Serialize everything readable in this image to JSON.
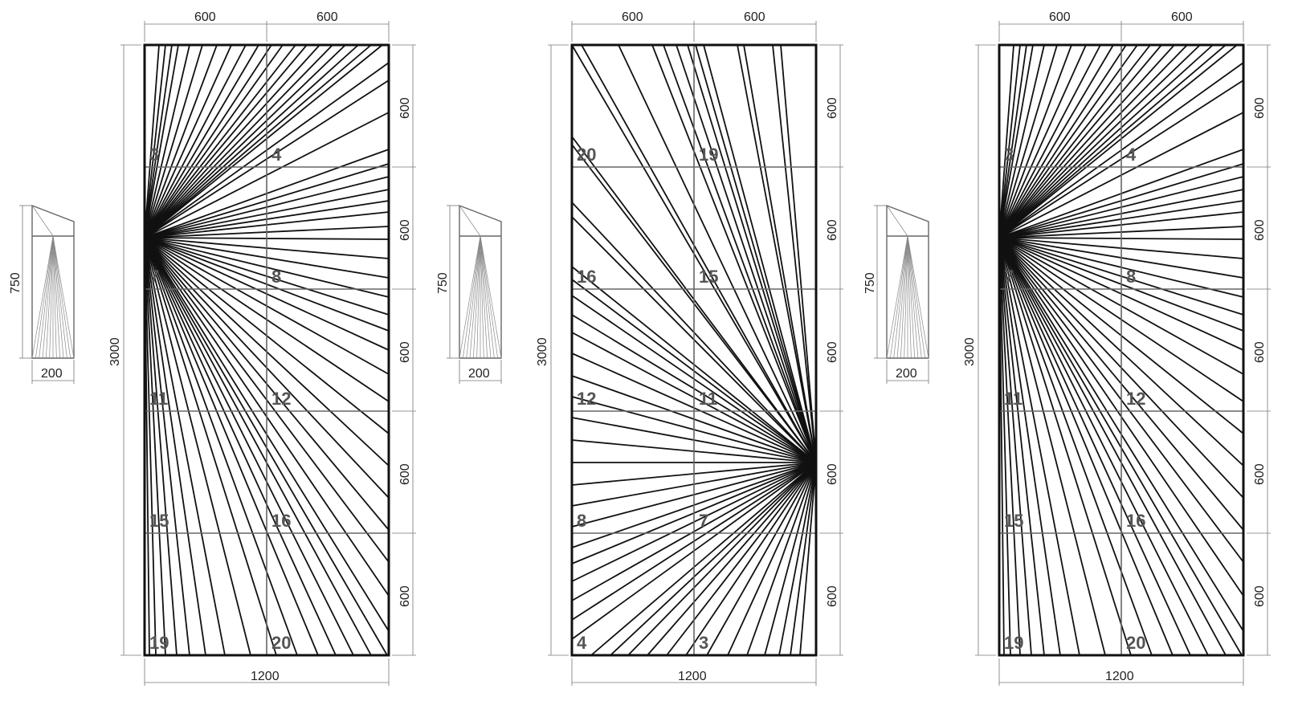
{
  "panels": [
    {
      "id": "panel-1",
      "focal": "left",
      "column_widths": [
        "600",
        "600"
      ],
      "total_width": "1200",
      "total_height": "3000",
      "row_heights": [
        "600",
        "600",
        "600",
        "600",
        "600"
      ],
      "cell_labels": [
        [
          "3",
          "4"
        ],
        [
          "7",
          "8"
        ],
        [
          "11",
          "12"
        ],
        [
          "15",
          "16"
        ],
        [
          "19",
          "20"
        ]
      ],
      "section": {
        "height": "750",
        "width": "200"
      }
    },
    {
      "id": "panel-2",
      "focal": "right",
      "column_widths": [
        "600",
        "600"
      ],
      "total_width": "1200",
      "total_height": "3000",
      "row_heights": [
        "600",
        "600",
        "600",
        "600",
        "600"
      ],
      "cell_labels": [
        [
          "20",
          "19"
        ],
        [
          "16",
          "15"
        ],
        [
          "12",
          "11"
        ],
        [
          "8",
          "7"
        ],
        [
          "4",
          "3"
        ]
      ],
      "section": {
        "height": "750",
        "width": "200"
      }
    },
    {
      "id": "panel-3",
      "focal": "left",
      "column_widths": [
        "600",
        "600"
      ],
      "total_width": "1200",
      "total_height": "3000",
      "row_heights": [
        "600",
        "600",
        "600",
        "600",
        "600"
      ],
      "cell_labels": [
        [
          "3",
          "4"
        ],
        [
          "7",
          "8"
        ],
        [
          "11",
          "12"
        ],
        [
          "15",
          "16"
        ],
        [
          "19",
          "20"
        ]
      ],
      "section": {
        "height": "750",
        "width": "200"
      }
    }
  ]
}
